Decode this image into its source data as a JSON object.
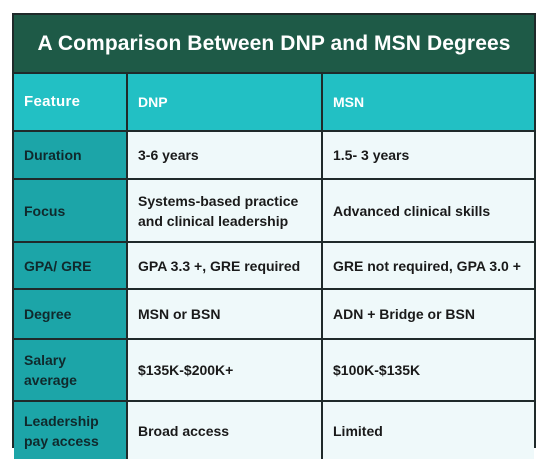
{
  "title": "A Comparison Between DNP and MSN Degrees",
  "headers": {
    "feature": "Feature",
    "dnp": "DNP",
    "msn": "MSN"
  },
  "rows": [
    {
      "feature": "Duration",
      "dnp": "3-6 years",
      "msn": "1.5- 3 years"
    },
    {
      "feature": "Focus",
      "dnp": "Systems-based practice and clinical leadership",
      "msn": "Advanced clinical skills"
    },
    {
      "feature": "GPA/ GRE",
      "dnp": "GPA 3.3 +, GRE required",
      "msn": "GRE not required, GPA 3.0 +"
    },
    {
      "feature": "Degree",
      "dnp": "MSN or BSN",
      "msn": "ADN + Bridge or BSN"
    },
    {
      "feature": "Salary average",
      "dnp": "$135K-$200K+",
      "msn": "$100K-$135K"
    },
    {
      "feature": "Leadership pay access",
      "dnp": "Broad access",
      "msn": "Limited"
    }
  ],
  "colors": {
    "title_background": "#1e5a47",
    "header_background": "#22c0c4",
    "feature_column": "#1ca5a8",
    "cell_background": "#eff9fa",
    "border": "#1f2a2a"
  }
}
